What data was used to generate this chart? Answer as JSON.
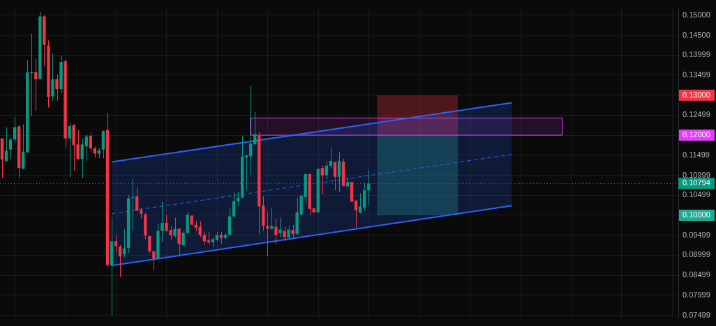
{
  "chart_data": {
    "type": "candlestick",
    "categories": [
      null,
      null,
      null,
      null,
      null,
      null,
      null,
      null,
      null,
      null,
      null,
      null,
      null,
      null,
      null,
      null,
      null,
      null,
      null,
      null,
      null,
      null,
      null,
      null,
      null,
      null,
      null,
      null,
      null,
      null,
      null,
      null,
      null,
      null,
      null,
      null,
      null,
      null,
      null,
      null,
      null,
      null,
      null,
      null,
      null,
      null,
      null,
      null,
      null,
      null,
      null,
      null,
      null,
      null,
      null,
      null,
      null,
      null,
      null,
      null,
      null,
      null,
      null,
      null,
      null,
      null,
      null,
      null,
      null,
      null,
      null,
      null,
      null,
      null,
      null,
      null,
      null,
      null,
      null,
      null,
      null,
      null,
      null,
      null,
      null,
      null,
      null,
      null,
      null,
      null,
      null,
      null,
      null,
      null,
      null,
      null,
      null,
      null,
      null,
      null,
      null,
      null,
      null,
      null,
      null,
      null,
      null,
      null,
      null,
      null,
      null,
      null,
      null,
      null,
      null,
      null,
      null,
      null,
      null,
      null,
      null,
      null,
      null,
      null,
      null,
      null,
      null,
      null,
      null,
      null,
      null,
      null,
      null,
      null,
      null,
      null,
      null,
      null,
      null,
      null,
      null,
      null,
      null,
      null,
      null,
      null,
      null,
      null,
      null,
      null,
      null,
      null,
      null,
      null,
      null,
      null,
      null,
      null,
      null,
      null,
      null
    ],
    "series": [
      {
        "type": "candlestick",
        "ohlc": [
          [
            0.1192,
            0.1192,
            0.1093,
            0.1139
          ],
          [
            0.1136,
            0.122,
            0.1133,
            0.1161
          ],
          [
            0.1164,
            0.1194,
            0.1141,
            0.1189
          ],
          [
            0.1189,
            0.1246,
            0.1182,
            0.122
          ],
          [
            0.1222,
            0.1225,
            0.1093,
            0.1118
          ],
          [
            0.1116,
            0.1227,
            0.1115,
            0.1159
          ],
          [
            0.1157,
            0.1387,
            0.1157,
            0.1357
          ],
          [
            0.1355,
            0.1454,
            0.1248,
            0.1358
          ],
          [
            0.1358,
            0.1391,
            0.1261,
            0.134
          ],
          [
            0.134,
            0.1508,
            0.134,
            0.1497
          ],
          [
            0.1497,
            0.15,
            0.1372,
            0.1426
          ],
          [
            0.1424,
            0.1437,
            0.1269,
            0.1296
          ],
          [
            0.1297,
            0.1404,
            0.1286,
            0.134
          ],
          [
            0.134,
            0.1352,
            0.1286,
            0.1315
          ],
          [
            0.1315,
            0.1398,
            0.1306,
            0.1383
          ],
          [
            0.1385,
            0.139,
            0.1167,
            0.1192
          ],
          [
            0.1192,
            0.1231,
            0.1096,
            0.1223
          ],
          [
            0.1225,
            0.1228,
            0.111,
            0.1175
          ],
          [
            0.1177,
            0.1213,
            0.1138,
            0.1141
          ],
          [
            0.1141,
            0.1192,
            0.1093,
            0.1177
          ],
          [
            0.1172,
            0.1202,
            0.1136,
            0.1197
          ],
          [
            0.1198,
            0.1207,
            0.1159,
            0.1167
          ],
          [
            0.1167,
            0.1172,
            0.1144,
            0.1154
          ],
          [
            0.1154,
            0.1167,
            0.1142,
            0.1162
          ],
          [
            0.1164,
            0.1212,
            0.1142,
            0.121
          ],
          [
            0.1213,
            0.1256,
            0.0871,
            0.0876
          ],
          [
            0.0874,
            0.0994,
            0.075,
            0.0935
          ],
          [
            0.0935,
            0.0951,
            0.0907,
            0.0923
          ],
          [
            0.0922,
            0.0925,
            0.0846,
            0.0897
          ],
          [
            0.0902,
            0.0966,
            0.0895,
            0.0917
          ],
          [
            0.0918,
            0.105,
            0.0905,
            0.1042
          ],
          [
            0.1044,
            0.109,
            0.0961,
            0.1045
          ],
          [
            0.1047,
            0.107,
            0.1011,
            0.1011
          ],
          [
            0.1012,
            0.1019,
            0.0992,
            0.1004
          ],
          [
            0.1002,
            0.1006,
            0.094,
            0.095
          ],
          [
            0.0948,
            0.0948,
            0.0905,
            0.091
          ],
          [
            0.091,
            0.091,
            0.0862,
            0.0892
          ],
          [
            0.0892,
            0.0979,
            0.0892,
            0.0961
          ],
          [
            0.0961,
            0.1034,
            0.0933,
            0.0981
          ],
          [
            0.0981,
            0.1001,
            0.0959,
            0.0961
          ],
          [
            0.0963,
            0.0973,
            0.0938,
            0.095
          ],
          [
            0.0948,
            0.0994,
            0.0945,
            0.0966
          ],
          [
            0.0966,
            0.0969,
            0.0897,
            0.0928
          ],
          [
            0.0925,
            0.0961,
            0.0923,
            0.0956
          ],
          [
            0.0956,
            0.1009,
            0.0953,
            0.1001
          ],
          [
            0.0999,
            0.0999,
            0.0976,
            0.0976
          ],
          [
            0.0976,
            0.0986,
            0.0961,
            0.0969
          ],
          [
            0.0971,
            0.0986,
            0.0945,
            0.0951
          ],
          [
            0.0951,
            0.0959,
            0.0927,
            0.0935
          ],
          [
            0.0937,
            0.0959,
            0.0928,
            0.0932
          ],
          [
            0.0932,
            0.0945,
            0.092,
            0.094
          ],
          [
            0.0938,
            0.0958,
            0.0935,
            0.0951
          ],
          [
            0.0951,
            0.0959,
            0.0928,
            0.0943
          ],
          [
            0.0943,
            0.0956,
            0.094,
            0.0951
          ],
          [
            0.0951,
            0.1019,
            0.0948,
            0.0997
          ],
          [
            0.0997,
            0.1058,
            0.0994,
            0.1035
          ],
          [
            0.1035,
            0.1058,
            0.1024,
            0.1044
          ],
          [
            0.1044,
            0.1198,
            0.1042,
            0.1146
          ],
          [
            0.1144,
            0.1151,
            0.1062,
            0.1149
          ],
          [
            0.1147,
            0.1324,
            0.1101,
            0.1179
          ],
          [
            0.1177,
            0.1258,
            0.1177,
            0.1202
          ],
          [
            0.1198,
            0.1208,
            0.0953,
            0.1022
          ],
          [
            0.1024,
            0.1047,
            0.0961,
            0.0973
          ],
          [
            0.0973,
            0.1009,
            0.0897,
            0.0966
          ],
          [
            0.0966,
            0.1019,
            0.0964,
            0.0973
          ],
          [
            0.0971,
            0.0992,
            0.0928,
            0.0951
          ],
          [
            0.0955,
            0.0994,
            0.0945,
            0.0964
          ],
          [
            0.0961,
            0.0971,
            0.0935,
            0.0945
          ],
          [
            0.0945,
            0.0974,
            0.0943,
            0.0964
          ],
          [
            0.0963,
            0.0976,
            0.0945,
            0.0953
          ],
          [
            0.0953,
            0.1044,
            0.0951,
            0.1007
          ],
          [
            0.1002,
            0.1049,
            0.0997,
            0.1049
          ],
          [
            0.1045,
            0.1103,
            0.1031,
            0.1103
          ],
          [
            0.1103,
            0.1103,
            0.1001,
            0.1016
          ],
          [
            0.1017,
            0.1017,
            0.1006,
            0.1007
          ],
          [
            0.1007,
            0.1116,
            0.1007,
            0.1116
          ],
          [
            0.1118,
            0.1124,
            0.1052,
            0.11
          ],
          [
            0.11,
            0.1134,
            0.1088,
            0.1124
          ],
          [
            0.1123,
            0.117,
            0.1118,
            0.1136
          ],
          [
            0.1133,
            0.1133,
            0.1062,
            0.1096
          ],
          [
            0.1096,
            0.1159,
            0.1058,
            0.1136
          ],
          [
            0.1134,
            0.1141,
            0.1072,
            0.1073
          ],
          [
            0.1072,
            0.1095,
            0.1072,
            0.1083
          ],
          [
            0.1083,
            0.1083,
            0.1032,
            0.1034
          ],
          [
            0.1037,
            0.1037,
            0.0969,
            0.1012
          ],
          [
            0.1006,
            0.1055,
            0.1004,
            0.1022
          ],
          [
            0.1019,
            0.108,
            0.1011,
            0.1062
          ],
          [
            0.1062,
            0.1113,
            0.1026,
            0.10794
          ],
          null,
          null,
          null,
          null,
          null,
          null,
          null,
          null,
          null,
          null,
          null,
          null,
          null,
          null,
          null,
          null,
          null,
          null,
          null,
          null,
          null,
          null,
          null,
          null,
          null,
          null,
          null,
          null,
          null,
          null,
          null,
          null,
          null,
          null,
          null,
          null,
          null,
          null,
          null,
          null,
          null,
          null,
          null,
          null,
          null,
          null,
          null,
          null,
          null,
          null,
          null,
          null,
          null,
          null,
          null,
          null,
          null,
          null,
          null,
          null,
          null,
          null,
          null,
          null,
          null,
          null,
          null,
          null,
          null,
          null,
          null,
          null,
          null
        ]
      },
      {
        "type": "line",
        "color": "#2962ff",
        "line_style": "solid",
        "values": [
          null,
          null,
          null,
          null,
          null,
          null,
          null,
          null,
          null,
          null,
          null,
          null,
          null,
          null,
          null,
          null,
          null,
          null,
          null,
          null,
          null,
          null,
          null,
          null,
          null,
          null,
          0.1133,
          null,
          null,
          null,
          null,
          null,
          null,
          null,
          null,
          null,
          null,
          null,
          null,
          null,
          null,
          null,
          null,
          null,
          null,
          null,
          null,
          null,
          null,
          null,
          null,
          null,
          null,
          null,
          null,
          null,
          null,
          null,
          null,
          null,
          null,
          null,
          null,
          null,
          null,
          null,
          null,
          null,
          null,
          null,
          null,
          null,
          null,
          null,
          null,
          null,
          null,
          null,
          null,
          null,
          null,
          null,
          null,
          null,
          null,
          null,
          null,
          null,
          null,
          null,
          null,
          null,
          null,
          null,
          null,
          null,
          null,
          null,
          null,
          null,
          null,
          null,
          null,
          null,
          null,
          null,
          null,
          null,
          null,
          null,
          null,
          null,
          null,
          null,
          null,
          null,
          null,
          null,
          null,
          null,
          null,
          0.1281,
          null,
          null,
          null,
          null,
          null,
          null,
          null,
          null,
          null,
          null,
          null,
          null,
          null,
          null,
          null,
          null,
          null,
          null,
          null,
          null,
          null,
          null,
          null,
          null,
          null,
          null,
          null,
          null,
          null,
          null,
          null,
          null,
          null,
          null,
          null,
          null,
          null,
          null,
          null
        ]
      },
      {
        "type": "line",
        "color": "#2962ff",
        "line_style": "solid",
        "values": [
          null,
          null,
          null,
          null,
          null,
          null,
          null,
          null,
          null,
          null,
          null,
          null,
          null,
          null,
          null,
          null,
          null,
          null,
          null,
          null,
          null,
          null,
          null,
          null,
          null,
          null,
          0.0874,
          null,
          null,
          null,
          null,
          null,
          null,
          null,
          null,
          null,
          null,
          null,
          null,
          null,
          null,
          null,
          null,
          null,
          null,
          null,
          null,
          null,
          null,
          null,
          null,
          null,
          null,
          null,
          null,
          null,
          null,
          null,
          null,
          null,
          null,
          null,
          null,
          null,
          null,
          null,
          null,
          null,
          null,
          null,
          null,
          null,
          null,
          null,
          null,
          null,
          null,
          null,
          null,
          null,
          null,
          null,
          null,
          null,
          null,
          null,
          null,
          null,
          null,
          null,
          null,
          null,
          null,
          null,
          null,
          null,
          null,
          null,
          null,
          null,
          null,
          null,
          null,
          null,
          null,
          null,
          null,
          null,
          null,
          null,
          null,
          null,
          null,
          null,
          null,
          null,
          null,
          null,
          null,
          null,
          null,
          0.1024,
          null,
          null,
          null,
          null,
          null,
          null,
          null,
          null,
          null,
          null,
          null,
          null,
          null,
          null,
          null,
          null,
          null,
          null,
          null,
          null,
          null,
          null,
          null,
          null,
          null,
          null,
          null,
          null,
          null,
          null,
          null,
          null,
          null,
          null,
          null,
          null,
          null,
          null,
          null
        ]
      },
      {
        "type": "line",
        "color": "#2962ff",
        "line_style": "dashed",
        "values": [
          null,
          null,
          null,
          null,
          null,
          null,
          null,
          null,
          null,
          null,
          null,
          null,
          null,
          null,
          null,
          null,
          null,
          null,
          null,
          null,
          null,
          null,
          null,
          null,
          null,
          null,
          0.1004,
          null,
          null,
          null,
          null,
          null,
          null,
          null,
          null,
          null,
          null,
          null,
          null,
          null,
          null,
          null,
          null,
          null,
          null,
          null,
          null,
          null,
          null,
          null,
          null,
          null,
          null,
          null,
          null,
          null,
          null,
          null,
          null,
          null,
          null,
          null,
          null,
          null,
          null,
          null,
          null,
          null,
          null,
          null,
          null,
          null,
          null,
          null,
          null,
          null,
          null,
          null,
          null,
          null,
          null,
          null,
          null,
          null,
          null,
          null,
          null,
          null,
          null,
          null,
          null,
          null,
          null,
          null,
          null,
          null,
          null,
          null,
          null,
          null,
          null,
          null,
          null,
          null,
          null,
          null,
          null,
          null,
          null,
          null,
          null,
          null,
          null,
          null,
          null,
          null,
          null,
          null,
          null,
          null,
          null,
          0.1152,
          null,
          null,
          null,
          null,
          null,
          null,
          null,
          null,
          null,
          null,
          null,
          null,
          null,
          null,
          null,
          null,
          null,
          null,
          null,
          null,
          null,
          null,
          null,
          null,
          null,
          null,
          null,
          null,
          null,
          null,
          null,
          null,
          null,
          null,
          null,
          null,
          null,
          null,
          null
        ],
        "lower": [
          null,
          null,
          null,
          null,
          null,
          null,
          null,
          null,
          null,
          null,
          null,
          null,
          null,
          null,
          null,
          null,
          null,
          null,
          null,
          null,
          null,
          null,
          null,
          null,
          null,
          null,
          0.0874,
          null,
          null,
          null,
          null,
          null,
          null,
          null,
          null,
          null,
          null,
          null,
          null,
          null,
          null,
          null,
          null,
          null,
          null,
          null,
          null,
          null,
          null,
          null,
          null,
          null,
          null,
          null,
          null,
          null,
          null,
          null,
          null,
          null,
          null,
          null,
          null,
          null,
          null,
          null,
          null,
          null,
          null,
          null,
          null,
          null,
          null,
          null,
          null,
          null,
          null,
          null,
          null,
          null,
          null,
          null,
          null,
          null,
          null,
          null,
          null,
          null,
          null,
          null,
          null,
          null,
          null,
          null,
          null,
          null,
          null,
          null,
          null,
          null,
          null,
          null,
          null,
          null,
          null,
          null,
          null,
          null,
          null,
          null,
          null,
          null,
          null,
          null,
          null,
          null,
          null,
          null,
          null,
          null,
          null,
          0.1024,
          null,
          null,
          null,
          null,
          null,
          null,
          null,
          null,
          null,
          null,
          null,
          null,
          null,
          null,
          null,
          null,
          null,
          null,
          null,
          null,
          null,
          null,
          null,
          null,
          null,
          null,
          null,
          null,
          null,
          null,
          null,
          null,
          null,
          null,
          null,
          null,
          null,
          null,
          null
        ],
        "upper": [
          null,
          null,
          null,
          null,
          null,
          null,
          null,
          null,
          null,
          null,
          null,
          null,
          null,
          null,
          null,
          null,
          null,
          null,
          null,
          null,
          null,
          null,
          null,
          null,
          null,
          null,
          0.1133,
          null,
          null,
          null,
          null,
          null,
          null,
          null,
          null,
          null,
          null,
          null,
          null,
          null,
          null,
          null,
          null,
          null,
          null,
          null,
          null,
          null,
          null,
          null,
          null,
          null,
          null,
          null,
          null,
          null,
          null,
          null,
          null,
          null,
          null,
          null,
          null,
          null,
          null,
          null,
          null,
          null,
          null,
          null,
          null,
          null,
          null,
          null,
          null,
          null,
          null,
          null,
          null,
          null,
          null,
          null,
          null,
          null,
          null,
          null,
          null,
          null,
          null,
          null,
          null,
          null,
          null,
          null,
          null,
          null,
          null,
          null,
          null,
          null,
          null,
          null,
          null,
          null,
          null,
          null,
          null,
          null,
          null,
          null,
          null,
          null,
          null,
          null,
          null,
          null,
          null,
          null,
          null,
          null,
          null,
          0.1281,
          null,
          null,
          null,
          null,
          null,
          null,
          null,
          null,
          null,
          null,
          null,
          null,
          null,
          null,
          null,
          null,
          null,
          null,
          null,
          null,
          null,
          null,
          null,
          null,
          null,
          null,
          null,
          null,
          null,
          null,
          null,
          null,
          null,
          null,
          null,
          null,
          null,
          null,
          null
        ]
      }
    ],
    "ylim": [
      0.0745,
      0.1516
    ],
    "yticks": [
      {
        "value": 0.15,
        "label": "0.15000"
      },
      {
        "value": 0.145,
        "label": "0.14500"
      },
      0.13999,
      0.13499,
      {
        "value": 0.13,
        "label": "0.13000"
      },
      0.12499,
      {
        "value": 0.12,
        "label": "0.12000"
      },
      0.11499,
      0.10999,
      0.10499,
      {
        "value": 0.1,
        "label": "0.10000"
      },
      0.09499,
      0.08999,
      0.08499,
      0.07999,
      0.07499
    ],
    "bands": [
      {
        "axis": "y",
        "from": 0.13,
        "to": 0.12,
        "color": "#f23645"
      },
      {
        "axis": "y",
        "from": 0.1,
        "to": 0.12,
        "color": "#22ab94"
      },
      {
        "axis": "y",
        "from": 0.12,
        "to": 0.1243,
        "color": "#e040fb"
      }
    ],
    "ref_lines": [
      {
        "axis": "y",
        "value": 0.10794,
        "label": "0.10794",
        "color": "#089981",
        "line_style": "dotted"
      }
    ],
    "grid": true,
    "legend": false,
    "tick_labels": "y"
  }
}
